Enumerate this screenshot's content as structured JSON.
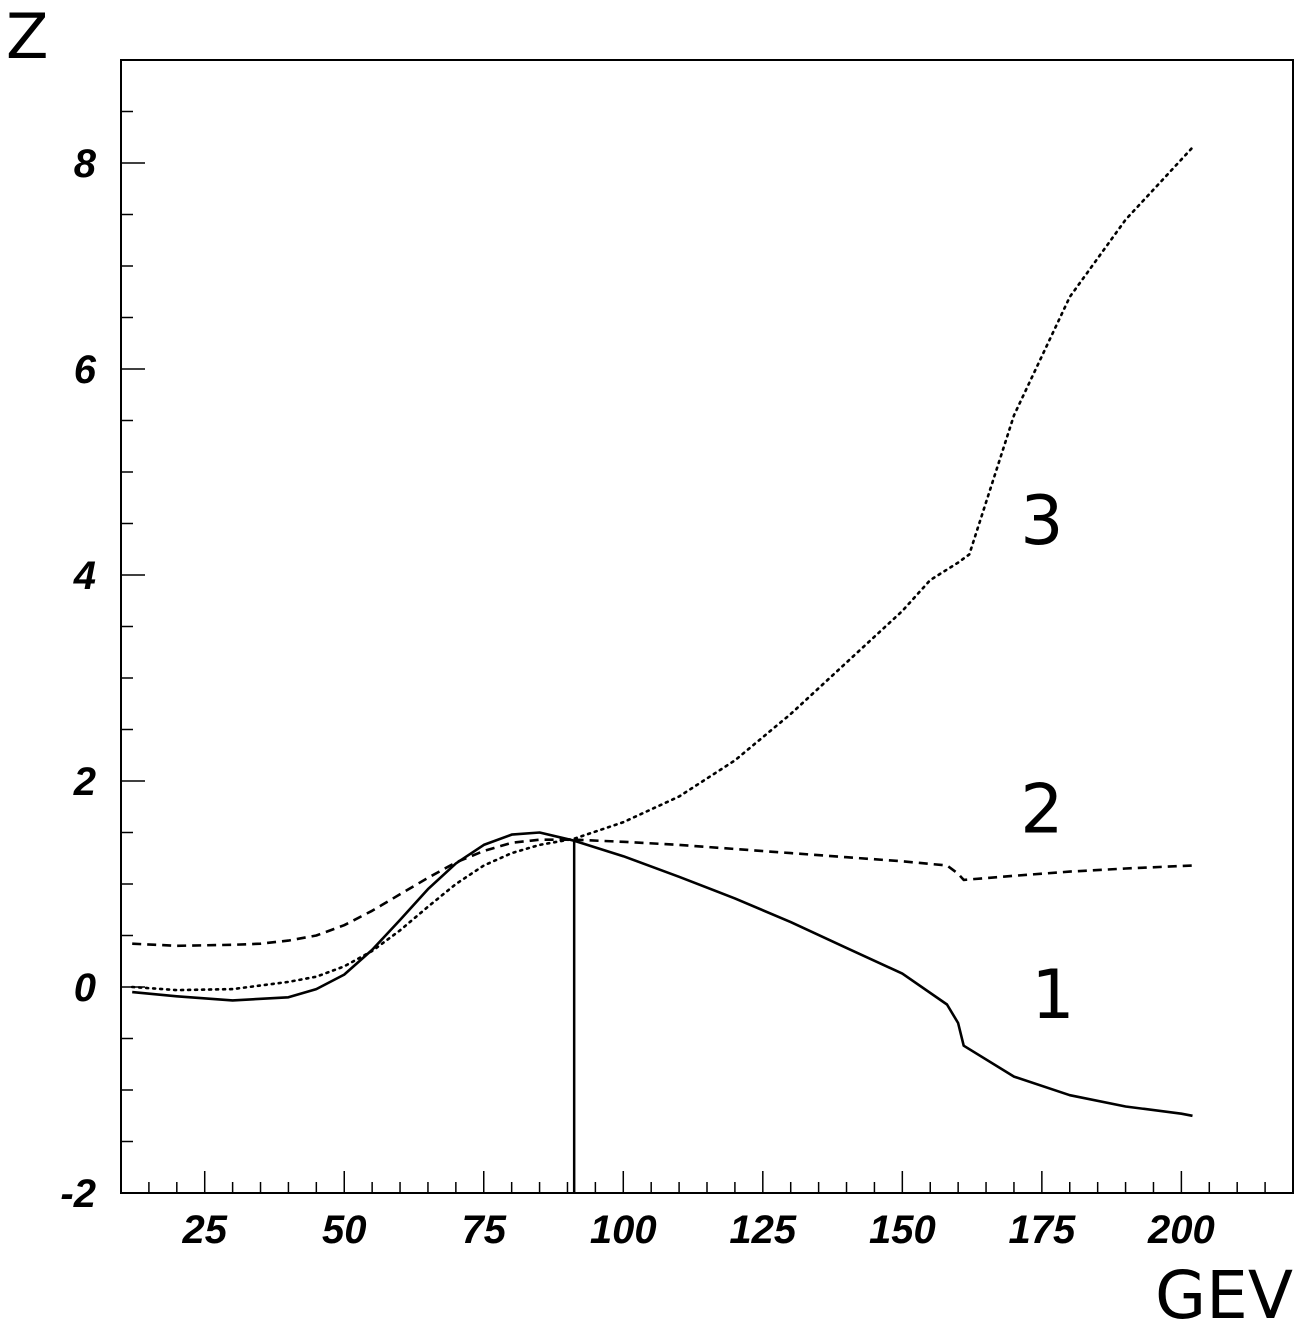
{
  "chart_data": {
    "type": "line",
    "title": "",
    "xlabel": "GEV",
    "ylabel": "Z",
    "xlim": [
      10,
      220
    ],
    "ylim": [
      -2,
      9
    ],
    "xticks": [
      25,
      50,
      75,
      100,
      125,
      150,
      175,
      200
    ],
    "yticks": [
      -2,
      0,
      2,
      4,
      6,
      8
    ],
    "grid": false,
    "vertical_marker_x": 91.2,
    "series": [
      {
        "name": "1",
        "style": "solid",
        "x": [
          12,
          20,
          30,
          40,
          45,
          50,
          55,
          60,
          65,
          70,
          75,
          80,
          85,
          91.2,
          100,
          110,
          120,
          130,
          140,
          150,
          158,
          160,
          161,
          170,
          180,
          190,
          200,
          202
        ],
        "y": [
          -0.05,
          -0.09,
          -0.13,
          -0.1,
          -0.02,
          0.12,
          0.36,
          0.65,
          0.95,
          1.2,
          1.38,
          1.48,
          1.5,
          1.42,
          1.27,
          1.07,
          0.86,
          0.63,
          0.38,
          0.13,
          -0.17,
          -0.35,
          -0.57,
          -0.87,
          -1.05,
          -1.16,
          -1.23,
          -1.25
        ]
      },
      {
        "name": "2",
        "style": "dashed",
        "x": [
          12,
          20,
          30,
          35,
          40,
          45,
          50,
          55,
          60,
          65,
          70,
          75,
          80,
          85,
          91.2,
          100,
          110,
          120,
          130,
          140,
          150,
          158,
          160,
          161,
          170,
          180,
          190,
          202
        ],
        "y": [
          0.42,
          0.4,
          0.41,
          0.42,
          0.45,
          0.5,
          0.6,
          0.74,
          0.9,
          1.06,
          1.21,
          1.32,
          1.4,
          1.43,
          1.43,
          1.41,
          1.38,
          1.34,
          1.3,
          1.26,
          1.22,
          1.18,
          1.1,
          1.04,
          1.08,
          1.12,
          1.15,
          1.18
        ]
      },
      {
        "name": "3",
        "style": "dotted",
        "x": [
          12,
          20,
          30,
          40,
          45,
          50,
          55,
          60,
          65,
          70,
          75,
          80,
          85,
          91.2,
          100,
          110,
          120,
          130,
          140,
          150,
          155,
          160,
          162,
          170,
          180,
          190,
          202
        ],
        "y": [
          0.0,
          -0.03,
          -0.02,
          0.05,
          0.1,
          0.2,
          0.35,
          0.55,
          0.78,
          1.0,
          1.18,
          1.3,
          1.38,
          1.44,
          1.6,
          1.85,
          2.2,
          2.65,
          3.15,
          3.65,
          3.95,
          4.12,
          4.2,
          5.55,
          6.7,
          7.45,
          8.15
        ]
      }
    ],
    "curve_labels": [
      {
        "text": "1",
        "x": 177,
        "y": -0.3
      },
      {
        "text": "2",
        "x": 175,
        "y": 1.5
      },
      {
        "text": "3",
        "x": 175,
        "y": 4.3
      }
    ]
  }
}
